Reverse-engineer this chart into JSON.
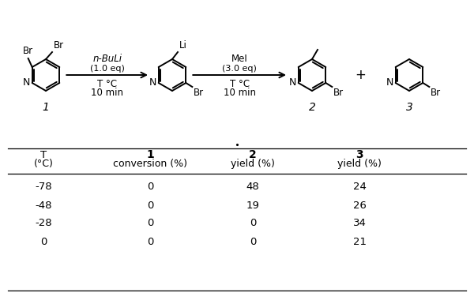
{
  "background_color": "#ffffff",
  "table_rows": [
    [
      "-78",
      "0",
      "48",
      "24"
    ],
    [
      "-48",
      "0",
      "19",
      "26"
    ],
    [
      "-28",
      "0",
      "0",
      "34"
    ],
    [
      "0",
      "0",
      "0",
      "21"
    ]
  ],
  "reagent1_line1": "n-BuLi",
  "reagent1_line2": "(1.0 eq)",
  "reagent2_line1": "MeI",
  "reagent2_line2": "(3.0 eq)",
  "conditions_line1": "T °C",
  "conditions_line2": "10 min",
  "label1": "1",
  "label2": "2",
  "label3": "3",
  "plus": "+",
  "col_headers_row1": [
    "T",
    "1",
    "2",
    "3"
  ],
  "col_headers_row2": [
    "(°C)",
    "conversion (%)",
    "yield (%)",
    "yield (%)"
  ],
  "font_size_reagent": 8.5,
  "font_size_label": 10,
  "font_size_atom": 9,
  "font_size_table": 9.5
}
